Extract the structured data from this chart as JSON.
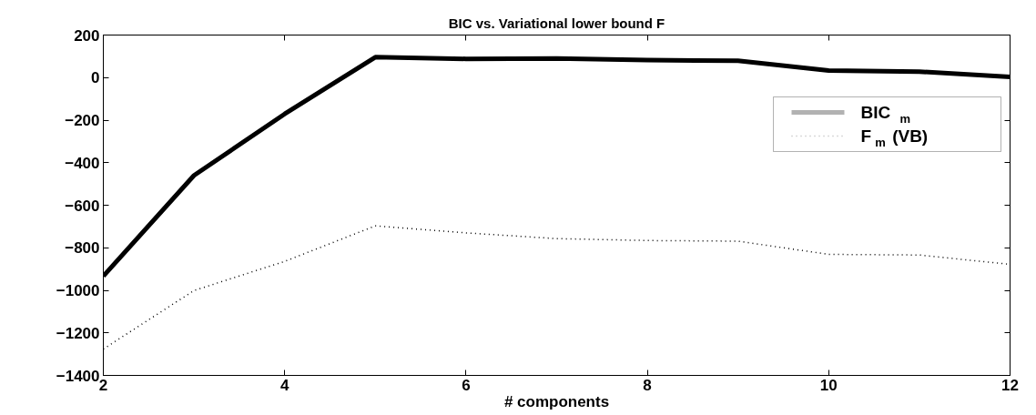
{
  "chart_data": {
    "type": "line",
    "title": "BIC vs. Variational lower bound F",
    "xlabel": "# components",
    "x": [
      2,
      3,
      4,
      5,
      6,
      7,
      8,
      9,
      10,
      11,
      12
    ],
    "series": [
      {
        "name": "BIC$_{m}$",
        "color": "#000000",
        "line_style": "solid",
        "values": [
          -933,
          -460,
          -171,
          96,
          88,
          90,
          82,
          79,
          33,
          28,
          3
        ]
      },
      {
        "name": "F$_{m}$ (VB)",
        "color": "#000000",
        "line_style": "dotted",
        "values": [
          -1276,
          -1001,
          -864,
          -697,
          -730,
          -757,
          -766,
          -769,
          -831,
          -834,
          -878
        ]
      }
    ],
    "xlim": [
      2,
      12
    ],
    "xticks": [
      2,
      4,
      6,
      8,
      10,
      12
    ],
    "ylim": [
      -1400,
      200
    ],
    "yticks": [
      -1400,
      -1200,
      -1000,
      -800,
      -600,
      -400,
      -200,
      0,
      200
    ],
    "grid": false,
    "legend": "top right",
    "marker": "none"
  }
}
